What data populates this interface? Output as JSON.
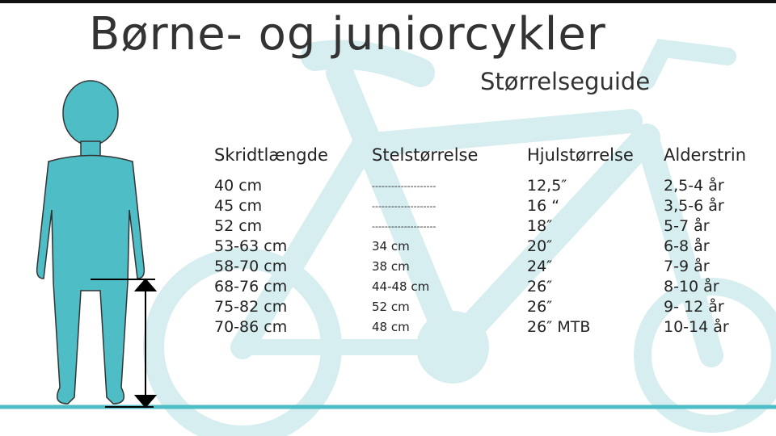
{
  "title": "Børne- og juniorcykler",
  "subtitle": "Størrelseguide",
  "colors": {
    "accent": "#4ebdc6",
    "bike_silhouette": "#d6eef0",
    "ground_line": "#4ebdc6"
  },
  "icons": [
    "child-silhouette-icon",
    "bicycle-silhouette-icon",
    "height-arrow-icon"
  ],
  "table": {
    "headers": [
      "Skridtlængde",
      "Stelstørrelse",
      "Hjulstørrelse",
      "Alderstrin"
    ],
    "rows": [
      [
        "40 cm",
        "--------------------",
        "12,5″",
        "2,5-4 år"
      ],
      [
        "45 cm",
        "--------------------",
        "16 “",
        "3,5-6 år"
      ],
      [
        "52 cm",
        "--------------------",
        "18″",
        "5-7 år"
      ],
      [
        "53-63 cm",
        "34 cm",
        "20″",
        "6-8 år"
      ],
      [
        "58-70 cm",
        "38 cm",
        "24″",
        "7-9 år"
      ],
      [
        "68-76 cm",
        "44-48 cm",
        "26″",
        "8-10 år"
      ],
      [
        "75-82 cm",
        "52 cm",
        "26″",
        "9- 12 år"
      ],
      [
        "70-86 cm",
        "48 cm",
        "26″ MTB",
        "10-14 år"
      ]
    ]
  }
}
